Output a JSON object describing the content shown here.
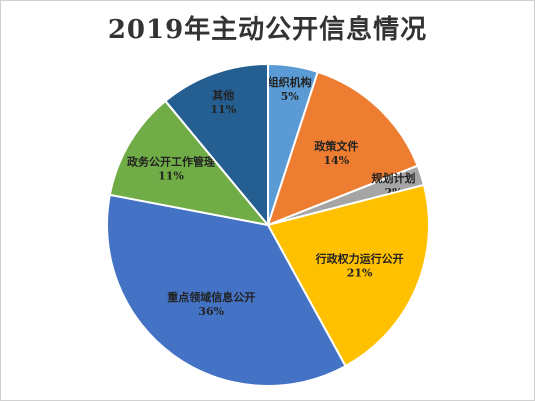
{
  "chart_data": {
    "type": "pie",
    "title": "2019年主动公开信息情况",
    "categories": [
      "组织机构",
      "政策文件",
      "规划计划",
      "行政权力运行公开",
      "重点领域信息公开",
      "政务公开工作管理",
      "其他"
    ],
    "values": [
      5,
      14,
      2,
      21,
      36,
      11,
      11
    ],
    "value_labels": [
      "5%",
      "14%",
      "2%",
      "21%",
      "36%",
      "11%",
      "11%"
    ],
    "colors": [
      "#5B9BD5",
      "#ED7D31",
      "#A5A5A5",
      "#FFC000",
      "#4472C4",
      "#70AD47",
      "#255E91"
    ],
    "legend": "none"
  }
}
